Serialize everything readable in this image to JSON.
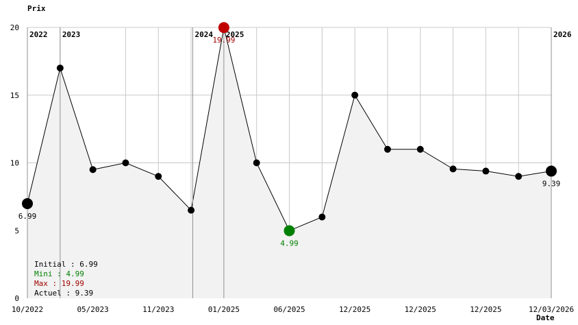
{
  "chart_data": {
    "type": "line",
    "ylabel": "Prix",
    "xlabel": "Date",
    "ylim": [
      0,
      20
    ],
    "y_ticks": [
      "0",
      "5",
      "10",
      "15",
      "20"
    ],
    "x_ticks": [
      "10/2022",
      "05/2023",
      "11/2023",
      "01/2025",
      "06/2025",
      "12/2025",
      "12/2025",
      "12/2025",
      "12/03/2026"
    ],
    "year_markers": [
      "2022",
      "2023",
      "2024",
      "2025",
      "2026"
    ],
    "grid": true,
    "series": [
      {
        "values": [
          6.99,
          17.0,
          9.5,
          10.0,
          9.0,
          6.5,
          19.99,
          10.0,
          4.99,
          6.0,
          15.0,
          11.0,
          11.0,
          9.55,
          9.39,
          9.0,
          9.39
        ]
      }
    ],
    "point_labels": {
      "initial": "6.99",
      "max": "19.99",
      "min": "4.99",
      "current": "9.39"
    },
    "legend": [
      {
        "text": "Initial : 6.99",
        "color": "#000000"
      },
      {
        "text": "Mini : 4.99",
        "color": "#008000"
      },
      {
        "text": "Max : 19.99",
        "color": "#a00000"
      },
      {
        "text": "Actuel : 9.39",
        "color": "#000000"
      }
    ],
    "colors": {
      "line": "#000000",
      "fill": "#f2f2f2",
      "grid": "#c8c8c8",
      "year_line": "#909090",
      "min": "#008000",
      "max": "#c00000",
      "max_label": "#a00000"
    }
  }
}
